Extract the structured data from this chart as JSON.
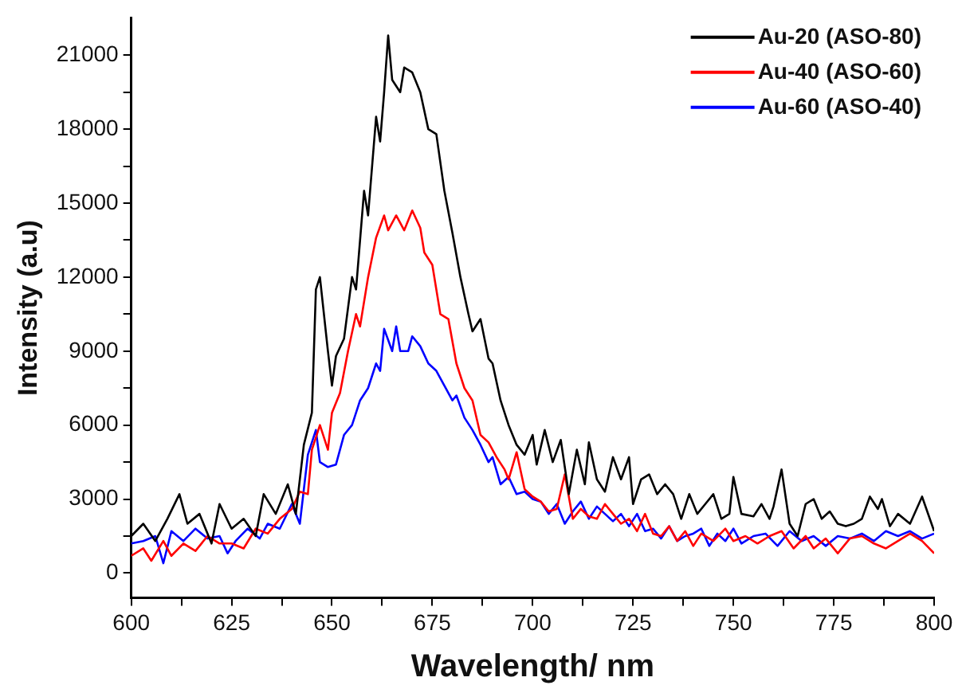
{
  "chart_data": {
    "type": "line",
    "xlabel": "Wavelength/ nm",
    "ylabel": "Intensity (a.u)",
    "xlim": [
      600,
      800
    ],
    "xticks": [
      600,
      {
        "value": 612.5,
        "label": null
      },
      625,
      {
        "value": 637.5,
        "label": null
      },
      650,
      {
        "value": 662.5,
        "label": null
      },
      675,
      {
        "value": 687.5,
        "label": null
      },
      700,
      {
        "value": 712.5,
        "label": null
      },
      725,
      {
        "value": 737.5,
        "label": null
      },
      750,
      {
        "value": 762.5,
        "label": null
      },
      775,
      {
        "value": 787.5,
        "label": null
      },
      800
    ],
    "ylim": [
      -1000,
      22500
    ],
    "yticks": [
      0,
      {
        "value": 1500,
        "label": null
      },
      3000,
      {
        "value": 4500,
        "label": null
      },
      6000,
      {
        "value": 7500,
        "label": null
      },
      9000,
      {
        "value": 10500,
        "label": null
      },
      12000,
      {
        "value": 13500,
        "label": null
      },
      15000,
      {
        "value": 16500,
        "label": null
      },
      18000,
      {
        "value": 19500,
        "label": null
      },
      21000
    ],
    "grid": false,
    "legend": "top right",
    "marker": "none",
    "line_style": "solid",
    "series": [
      {
        "name": "Au-20 (ASO-80)",
        "color": "#000000",
        "x": [
          600,
          603,
          606,
          609,
          612,
          614,
          617,
          620,
          622,
          625,
          628,
          631,
          633,
          636,
          639,
          641,
          643,
          645,
          646,
          647,
          649,
          650,
          651,
          653,
          655,
          656,
          658,
          659,
          661,
          662,
          663,
          664,
          665,
          667,
          668,
          670,
          672,
          674,
          676,
          678,
          680,
          682,
          684,
          685,
          687,
          689,
          690,
          692,
          694,
          696,
          698,
          700,
          701,
          703,
          705,
          707,
          709,
          711,
          713,
          714,
          716,
          718,
          720,
          722,
          724,
          725,
          727,
          729,
          731,
          733,
          735,
          737,
          739,
          741,
          743,
          745,
          747,
          749,
          750,
          752,
          755,
          757,
          759,
          760,
          762,
          764,
          766,
          768,
          770,
          772,
          774,
          776,
          778,
          780,
          782,
          784,
          786,
          787,
          789,
          791,
          794,
          797,
          800
        ],
        "values": [
          1500,
          2000,
          1300,
          2200,
          3200,
          2000,
          2400,
          1200,
          2800,
          1800,
          2200,
          1500,
          3200,
          2400,
          3600,
          2400,
          5200,
          6500,
          11500,
          12000,
          9000,
          7600,
          8800,
          9500,
          12000,
          11500,
          15500,
          14500,
          18500,
          17500,
          19500,
          21800,
          20000,
          19500,
          20500,
          20300,
          19500,
          18000,
          17800,
          15500,
          13800,
          12000,
          10500,
          9800,
          10300,
          8700,
          8500,
          7000,
          6000,
          5200,
          4800,
          5600,
          4400,
          5800,
          4500,
          5400,
          3200,
          5000,
          3600,
          5300,
          3800,
          3300,
          4700,
          3800,
          4700,
          2800,
          3800,
          4000,
          3200,
          3600,
          3200,
          2200,
          3200,
          2400,
          2800,
          3200,
          2200,
          2400,
          3900,
          2400,
          2300,
          2800,
          2200,
          2700,
          4200,
          2000,
          1500,
          2800,
          3000,
          2200,
          2500,
          2000,
          1900,
          2000,
          2200,
          3100,
          2600,
          3000,
          1900,
          2400,
          2000,
          3100,
          1700
        ]
      },
      {
        "name": "Au-40 (ASO-60)",
        "color": "#ff0000",
        "x": [
          600,
          603,
          605,
          608,
          610,
          613,
          616,
          619,
          622,
          625,
          628,
          631,
          634,
          637,
          640,
          642,
          644,
          645,
          647,
          649,
          650,
          652,
          654,
          656,
          657,
          659,
          661,
          663,
          664,
          666,
          668,
          670,
          672,
          673,
          675,
          677,
          679,
          681,
          683,
          685,
          687,
          689,
          691,
          693,
          694,
          696,
          698,
          700,
          702,
          704,
          706,
          708,
          710,
          712,
          714,
          716,
          718,
          720,
          722,
          724,
          726,
          728,
          730,
          732,
          734,
          736,
          738,
          740,
          742,
          745,
          748,
          750,
          753,
          756,
          759,
          762,
          765,
          768,
          770,
          773,
          776,
          779,
          782,
          785,
          788,
          791,
          794,
          797,
          800
        ],
        "values": [
          700,
          1000,
          500,
          1300,
          700,
          1200,
          900,
          1500,
          1200,
          1200,
          1000,
          1800,
          1600,
          2200,
          2600,
          3300,
          3200,
          5000,
          6000,
          5000,
          6500,
          7300,
          9000,
          10500,
          10000,
          12000,
          13600,
          14500,
          13900,
          14500,
          13900,
          14700,
          14000,
          13000,
          12500,
          10500,
          10300,
          8500,
          7500,
          7000,
          5600,
          5300,
          4700,
          4200,
          3800,
          4900,
          3400,
          3100,
          2900,
          2500,
          2600,
          4000,
          2200,
          2600,
          2300,
          2200,
          2800,
          2400,
          2000,
          2200,
          1700,
          2400,
          1600,
          1500,
          1900,
          1300,
          1700,
          1100,
          1600,
          1300,
          1800,
          1300,
          1500,
          1200,
          1500,
          1700,
          1000,
          1500,
          1000,
          1400,
          800,
          1400,
          1500,
          1200,
          1000,
          1300,
          1600,
          1300,
          800
        ]
      },
      {
        "name": "Au-60 (ASO-40)",
        "color": "#0000ff",
        "x": [
          600,
          603,
          606,
          608,
          610,
          613,
          616,
          619,
          622,
          624,
          626,
          629,
          632,
          634,
          637,
          640,
          642,
          644,
          646,
          647,
          649,
          651,
          653,
          655,
          657,
          659,
          661,
          662,
          663,
          665,
          666,
          667,
          669,
          670,
          672,
          674,
          676,
          678,
          680,
          681,
          683,
          685,
          687,
          689,
          690,
          692,
          694,
          696,
          698,
          700,
          702,
          704,
          706,
          708,
          710,
          712,
          714,
          716,
          718,
          720,
          722,
          724,
          726,
          728,
          730,
          732,
          734,
          736,
          738,
          740,
          742,
          744,
          746,
          748,
          750,
          752,
          755,
          758,
          761,
          764,
          767,
          770,
          773,
          776,
          779,
          782,
          785,
          788,
          791,
          794,
          797,
          800
        ],
        "values": [
          1200,
          1300,
          1500,
          400,
          1700,
          1300,
          1800,
          1400,
          1500,
          800,
          1300,
          1800,
          1400,
          2000,
          1800,
          2800,
          2000,
          4800,
          5800,
          4500,
          4300,
          4400,
          5600,
          6000,
          7000,
          7500,
          8500,
          8200,
          9900,
          9000,
          10000,
          9000,
          9000,
          9600,
          9200,
          8500,
          8200,
          7600,
          7000,
          7200,
          6300,
          5800,
          5200,
          4500,
          4700,
          3600,
          3900,
          3200,
          3300,
          3000,
          2900,
          2400,
          2800,
          2000,
          2500,
          2900,
          2200,
          2700,
          2400,
          2100,
          2400,
          1900,
          2400,
          1700,
          1800,
          1400,
          1900,
          1300,
          1500,
          1600,
          1800,
          1100,
          1600,
          1300,
          1800,
          1200,
          1500,
          1600,
          1100,
          1700,
          1300,
          1500,
          1100,
          1500,
          1400,
          1600,
          1300,
          1700,
          1500,
          1700,
          1400,
          1600
        ]
      }
    ]
  }
}
